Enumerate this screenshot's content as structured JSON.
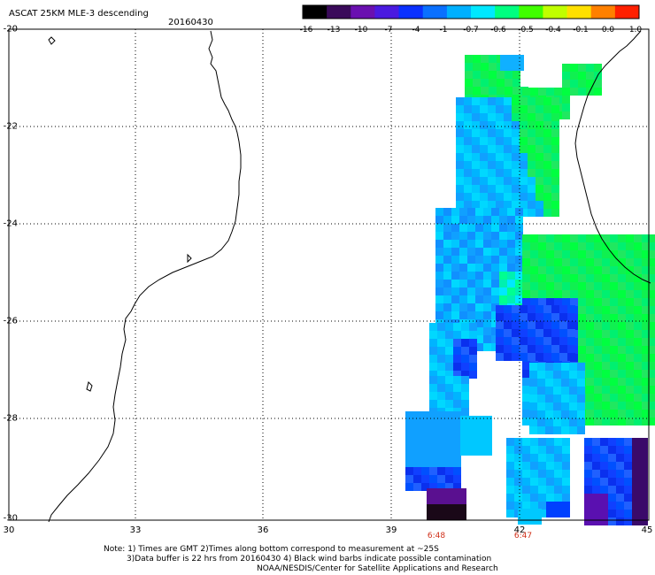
{
  "header": {
    "title": "ASCAT 25KM MLE-3 descending",
    "date": "20160430"
  },
  "colorbar": {
    "labels": [
      "-16",
      "-13",
      "-10",
      "-7",
      "-4",
      "-1",
      "-0.7",
      "-0.6",
      "-0.5",
      "-0.4",
      "-0.1",
      "0.0",
      "1.0"
    ],
    "colors": [
      "#000000",
      "#3a0a5a",
      "#6a10b0",
      "#4a1ae0",
      "#0a30ff",
      "#0a70ff",
      "#00b0ff",
      "#00e8ff",
      "#00ff80",
      "#40ff00",
      "#c0ff00",
      "#ffe000",
      "#ff8000",
      "#ff2000"
    ]
  },
  "axes": {
    "lat_labels": [
      "-20",
      "-22",
      "-24",
      "-26",
      "-28",
      "-30"
    ],
    "lon_labels": [
      "30",
      "33",
      "36",
      "39",
      "42",
      "45"
    ]
  },
  "pass_times": [
    "6:48",
    "6:47"
  ],
  "notes": {
    "line1": "Note: 1) Times are GMT 2)Times along bottom correspond to measurement at ~25S",
    "line2": "3)Data buffer is 22 hrs from 20160430 4) Black wind barbs indicate possible contamination",
    "line3": "NOAA/NESDIS/Center for Satellite Applications and Research"
  }
}
